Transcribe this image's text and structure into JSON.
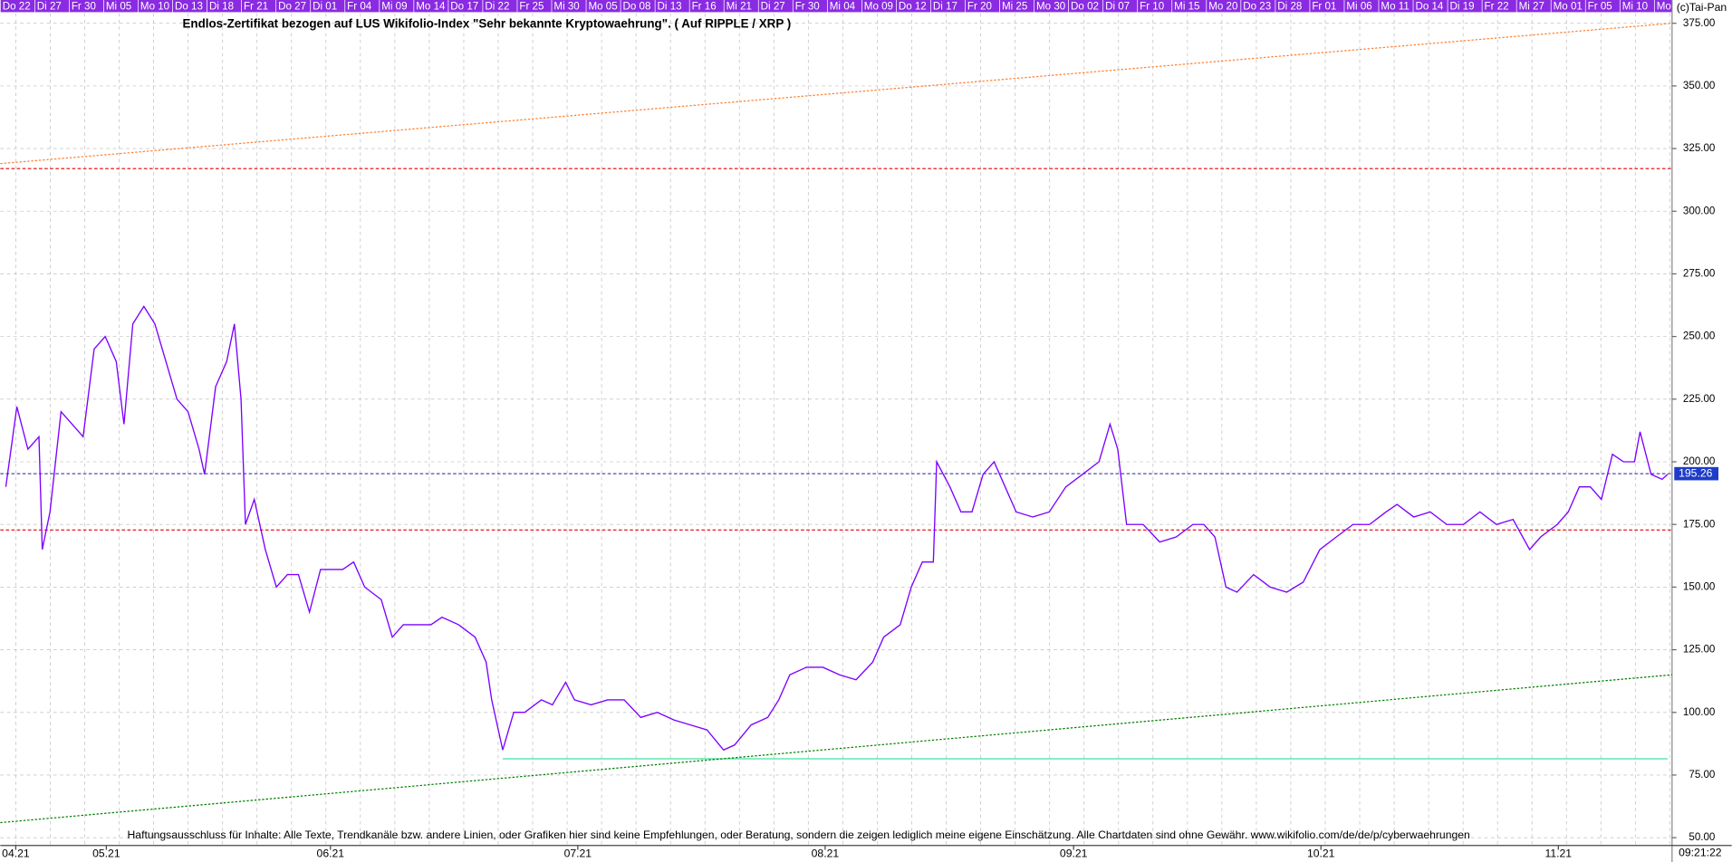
{
  "chart_data": {
    "type": "line",
    "title": "Endlos-Zertifikat bezogen auf LUS Wikifolio-Index \"Sehr bekannte Kryptowaehrung\". ( Auf RIPPLE / XRP )",
    "footer": "Haftungsausschluss für Inhalte: Alle Texte, Trendkanäle bzw. andere Linien, oder Grafiken hier sind keine Empfehlungen, oder Beratung, sondern die zeigen lediglich meine eigene Einschätzung. Alle Chartdaten sind ohne Gewähr.  www.wikifolio.com/de/de/p/cyberwaehrungen",
    "watermark": "(c)Tai-Pan",
    "time_label": "09:21:22",
    "top_dates": [
      "Do 22",
      "Di 27",
      "Fr 30",
      "Mi 05",
      "Mo 10",
      "Do 13",
      "Di 18",
      "Fr 21",
      "Do 27",
      "Di 01",
      "Fr 04",
      "Mi 09",
      "Mo 14",
      "Do 17",
      "Di 22",
      "Fr 25",
      "Mi 30",
      "Mo 05",
      "Do 08",
      "Di 13",
      "Fr 16",
      "Mi 21",
      "Di 27",
      "Fr 30",
      "Mi 04",
      "Mo 09",
      "Do 12",
      "Di 17",
      "Fr 20",
      "Mi 25",
      "Mo 30",
      "Do 02",
      "Di 07",
      "Fr 10",
      "Mi 15",
      "Mo 20",
      "Do 23",
      "Di 28",
      "Fr 01",
      "Mi 06",
      "Mo 11",
      "Do 14",
      "Di 19",
      "Fr 22",
      "Mi 27",
      "Mo 01",
      "Fr 05",
      "Mi 10",
      "Mo"
    ],
    "x": [
      5,
      15,
      25,
      35,
      38,
      45,
      55,
      65,
      75,
      85,
      95,
      105,
      112,
      120,
      130,
      140,
      150,
      160,
      170,
      180,
      185,
      195,
      205,
      212,
      218,
      222,
      230,
      240,
      250,
      260,
      270,
      280,
      290,
      300,
      310,
      320,
      330,
      345,
      355,
      365,
      375,
      390,
      400,
      415,
      430,
      440,
      445,
      455,
      465,
      475,
      490,
      500,
      512,
      520,
      535,
      550,
      565,
      580,
      595,
      610,
      625,
      640,
      655,
      665,
      680,
      695,
      705,
      715,
      730,
      745,
      760,
      775,
      790,
      800,
      815,
      825,
      835,
      845,
      848,
      860,
      870,
      880,
      890,
      900,
      910,
      920,
      935,
      950,
      965,
      980,
      995,
      1005,
      1012,
      1020,
      1035,
      1050,
      1065,
      1080,
      1090,
      1100,
      1110,
      1120,
      1135,
      1150,
      1165,
      1180,
      1195,
      1210,
      1225,
      1240,
      1255,
      1265,
      1280,
      1295,
      1310,
      1325,
      1340,
      1355,
      1370,
      1385,
      1395,
      1410,
      1420,
      1430,
      1440,
      1450,
      1460,
      1470,
      1480,
      1485,
      1495,
      1505,
      1510
    ],
    "values": [
      190,
      222,
      205,
      210,
      165,
      180,
      220,
      215,
      210,
      245,
      250,
      240,
      215,
      255,
      262,
      255,
      240,
      225,
      220,
      205,
      195,
      230,
      240,
      255,
      225,
      175,
      185,
      165,
      150,
      155,
      155,
      140,
      157,
      157,
      157,
      160,
      150,
      145,
      130,
      135,
      135,
      135,
      138,
      135,
      130,
      120,
      105,
      85,
      100,
      100,
      105,
      103,
      112,
      105,
      103,
      105,
      105,
      98,
      100,
      97,
      95,
      93,
      85,
      87,
      95,
      98,
      105,
      115,
      118,
      118,
      115,
      113,
      120,
      130,
      135,
      150,
      160,
      160,
      200,
      190,
      180,
      180,
      195,
      200,
      190,
      180,
      178,
      180,
      190,
      195,
      200,
      215,
      205,
      175,
      175,
      168,
      170,
      175,
      175,
      170,
      150,
      148,
      155,
      150,
      148,
      152,
      165,
      170,
      175,
      175,
      180,
      183,
      178,
      180,
      175,
      175,
      180,
      175,
      177,
      165,
      170,
      175,
      180,
      190,
      190,
      185,
      203,
      200,
      200,
      212,
      195,
      193,
      195
    ],
    "color": "#7b00ff",
    "last_price": 195.26,
    "xlim": [
      0,
      1514
    ],
    "xticks": [
      {
        "value": 14,
        "label": "04.21"
      },
      {
        "value": 96,
        "label": "05.21"
      },
      {
        "value": 299,
        "label": "06.21"
      },
      {
        "value": 523,
        "label": "07.21"
      },
      {
        "value": 747,
        "label": "08.21"
      },
      {
        "value": 972,
        "label": "09.21"
      },
      {
        "value": 1196,
        "label": "10.21"
      },
      {
        "value": 1411,
        "label": "11.21"
      }
    ],
    "ylim": [
      46.9,
      379
    ],
    "yticks": [
      {
        "value": 50,
        "label": "50.00"
      },
      {
        "value": 75,
        "label": "75.00"
      },
      {
        "value": 100,
        "label": "100.00"
      },
      {
        "value": 125,
        "label": "125.00"
      },
      {
        "value": 150,
        "label": "150.00"
      },
      {
        "value": 175,
        "label": "175.00"
      },
      {
        "value": 200,
        "label": "200.00"
      },
      {
        "value": 225,
        "label": "225.00"
      },
      {
        "value": 250,
        "label": "250.00"
      },
      {
        "value": 275,
        "label": "275.00"
      },
      {
        "value": 300,
        "label": "300.00"
      },
      {
        "value": 325,
        "label": "325.00"
      },
      {
        "value": 350,
        "label": "350.00"
      },
      {
        "value": 375,
        "label": "375.00"
      }
    ],
    "grid": true,
    "hlines": [
      {
        "value": 317,
        "color": "#e00000"
      },
      {
        "value": 172.8,
        "color": "#e00000"
      },
      {
        "value": 195.26,
        "color": "#2020a0"
      }
    ],
    "support": {
      "x": [
        455,
        1510
      ],
      "value": 81.5,
      "color": "#40e0a0"
    },
    "trendlines": [
      {
        "x": [
          0,
          1514
        ],
        "values": [
          319,
          375
        ],
        "color": "#ff8030"
      },
      {
        "x": [
          0,
          1514
        ],
        "values": [
          56,
          115
        ],
        "color": "#008000"
      }
    ]
  }
}
